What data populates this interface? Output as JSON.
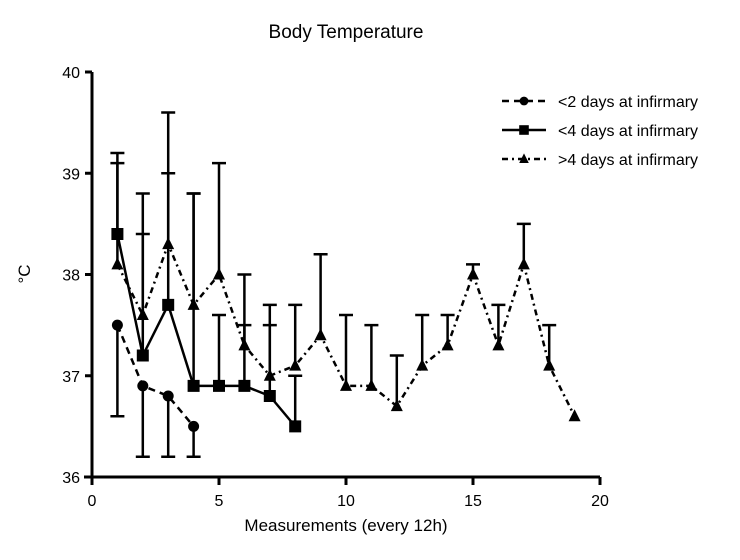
{
  "chart_data": {
    "type": "line",
    "title": "Body Temperature",
    "xlabel": "Measurements (every 12h)",
    "ylabel": "°C",
    "xlim": [
      0,
      20
    ],
    "ylim": [
      36,
      40
    ],
    "xticks": [
      "0",
      "5",
      "10",
      "15",
      "20"
    ],
    "yticks": [
      "36",
      "37",
      "38",
      "39",
      "40"
    ],
    "grid": false,
    "legend_position": "top-right",
    "series": [
      {
        "name": "<2 days at infirmary",
        "marker": "circle",
        "line_style": "dashed",
        "x": [
          1,
          2,
          3,
          4
        ],
        "values": [
          37.5,
          36.9,
          36.8,
          36.5
        ],
        "error_direction": "down",
        "error_bound": [
          36.6,
          36.2,
          36.2,
          36.2
        ]
      },
      {
        "name": "<4 days at infirmary",
        "marker": "square",
        "line_style": "solid",
        "x": [
          1,
          2,
          3,
          4,
          5,
          6,
          7,
          8
        ],
        "values": [
          38.4,
          37.2,
          37.7,
          36.9,
          36.9,
          36.9,
          36.8,
          36.5
        ],
        "error_direction": "up",
        "error_bound": [
          39.1,
          38.4,
          39.0,
          38.8,
          37.6,
          37.5,
          37.5,
          37.0
        ]
      },
      {
        "name": ">4 days at infirmary",
        "marker": "triangle",
        "line_style": "dash-dot",
        "x": [
          1,
          2,
          3,
          4,
          5,
          6,
          7,
          8,
          9,
          10,
          11,
          12,
          13,
          14,
          15,
          16,
          17,
          18,
          19
        ],
        "values": [
          38.1,
          37.6,
          38.3,
          37.7,
          38.0,
          37.3,
          37.0,
          37.1,
          37.4,
          36.9,
          36.9,
          36.7,
          37.1,
          37.3,
          38.0,
          37.3,
          38.1,
          37.1,
          36.6
        ],
        "error_direction": "up",
        "error_bound": [
          39.2,
          38.8,
          39.6,
          38.8,
          39.1,
          38.0,
          37.7,
          37.7,
          38.2,
          37.6,
          37.5,
          37.2,
          37.6,
          37.6,
          38.1,
          37.7,
          38.5,
          37.5,
          null
        ]
      }
    ]
  }
}
